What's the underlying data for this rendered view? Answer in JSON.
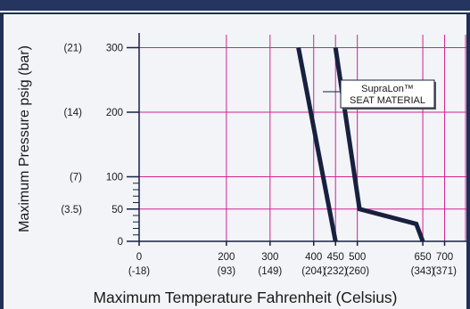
{
  "colors": {
    "frame": "#1f2f55",
    "panel": "#f2f4f8",
    "grid": "#d4218f",
    "line": "#17213f",
    "text": "#1a1a1a"
  },
  "chart_data": {
    "type": "line",
    "xlabel": "Maximum Temperature Fahrenheit (Celsius)",
    "ylabel": "Maximum Pressure psig (bar)",
    "xlim": [
      0,
      750
    ],
    "ylim": [
      0,
      320
    ],
    "grid": true,
    "x_ticks": [
      {
        "value": 0,
        "label": "0",
        "sublabel": "(-18)"
      },
      {
        "value": 200,
        "label": "200",
        "sublabel": "(93)"
      },
      {
        "value": 300,
        "label": "300",
        "sublabel": "(149)"
      },
      {
        "value": 400,
        "label": "400",
        "sublabel": "(204)"
      },
      {
        "value": 450,
        "label": "450",
        "sublabel": "(232)"
      },
      {
        "value": 500,
        "label": "500",
        "sublabel": "(260)"
      },
      {
        "value": 650,
        "label": "650",
        "sublabel": "(343)"
      },
      {
        "value": 700,
        "label": "700",
        "sublabel": "(371)"
      }
    ],
    "y_ticks": [
      {
        "value": 0,
        "label": "0",
        "sublabel": ""
      },
      {
        "value": 50,
        "label": "50",
        "sublabel": "(3.5)"
      },
      {
        "value": 100,
        "label": "100",
        "sublabel": "(7)"
      },
      {
        "value": 200,
        "label": "200",
        "sublabel": "(14)"
      },
      {
        "value": 300,
        "label": "300",
        "sublabel": "(21)"
      }
    ],
    "y_minor_ticks": [
      10,
      20,
      30,
      40,
      60,
      70,
      80,
      90
    ],
    "series": [
      {
        "x": [
          365,
          450
        ],
        "y": [
          300,
          0
        ]
      },
      {
        "x": [
          450,
          505,
          635,
          650
        ],
        "y": [
          300,
          50,
          27,
          0
        ]
      }
    ],
    "annotation": {
      "lines": [
        "SupraLon™",
        "SEAT MATERIAL"
      ]
    }
  }
}
